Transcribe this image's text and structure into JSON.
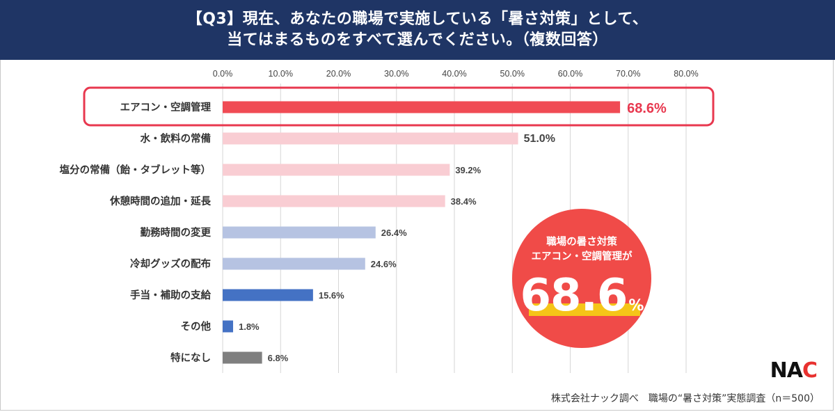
{
  "header": {
    "line1": "【Q3】現在、あなたの職場で実施している「暑さ対策」として、",
    "line2": "当てはまるものをすべて選んでください。（複数回答）"
  },
  "chart_data": {
    "type": "bar",
    "orientation": "horizontal",
    "categories": [
      "エアコン・空調管理",
      "水・飲料の常備",
      "塩分の常備（飴・タブレット等）",
      "休憩時間の追加・延長",
      "勤務時間の変更",
      "冷却グッズの配布",
      "手当・補助の支給",
      "その他",
      "特になし"
    ],
    "values": [
      68.6,
      51.0,
      39.2,
      38.4,
      26.4,
      24.6,
      15.6,
      1.8,
      6.8
    ],
    "value_labels": [
      "68.6%",
      "51.0%",
      "39.2%",
      "38.4%",
      "26.4%",
      "24.6%",
      "15.6%",
      "1.8%",
      "6.8%"
    ],
    "bar_colors": [
      "#f04b54",
      "#f9cdd3",
      "#f9cdd3",
      "#f9cdd3",
      "#b6c3e2",
      "#b6c3e2",
      "#4472c4",
      "#4472c4",
      "#7f7f7f"
    ],
    "highlight_index": 0,
    "highlight_color": "#e8384f",
    "xlim": [
      0,
      80
    ],
    "xticks": [
      "0.0%",
      "10.0%",
      "20.0%",
      "30.0%",
      "40.0%",
      "50.0%",
      "60.0%",
      "70.0%",
      "80.0%"
    ],
    "grid": true,
    "axis_position": "top"
  },
  "callout": {
    "line1": "職場の暑さ対策",
    "line2": "エアコン・空調管理が",
    "value": "68.6",
    "unit": "%",
    "bg_color": "#f04b48",
    "underline_color": "#f5c518"
  },
  "logo": {
    "text_main": "NA",
    "text_accent": "C"
  },
  "source": "株式会社ナック調べ　職場の“暑さ対策”実態調査（n＝500）"
}
